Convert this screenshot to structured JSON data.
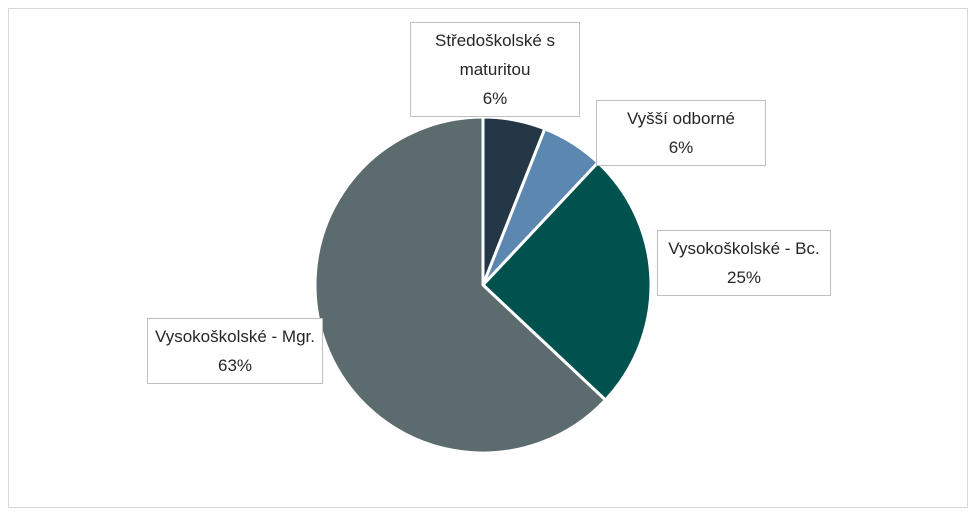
{
  "chart_data": {
    "type": "pie",
    "categories": [
      "Středoškolské s maturitou",
      "Vyšší odborné",
      "Vysokoškolské - Bc.",
      "Vysokoškolské - Mgr."
    ],
    "values": [
      6,
      6,
      25,
      63
    ],
    "value_labels": [
      "6%",
      "6%",
      "25%",
      "63%"
    ],
    "colors": [
      "#243746",
      "#5b87b0",
      "#00524f",
      "#5b6b6e"
    ]
  }
}
